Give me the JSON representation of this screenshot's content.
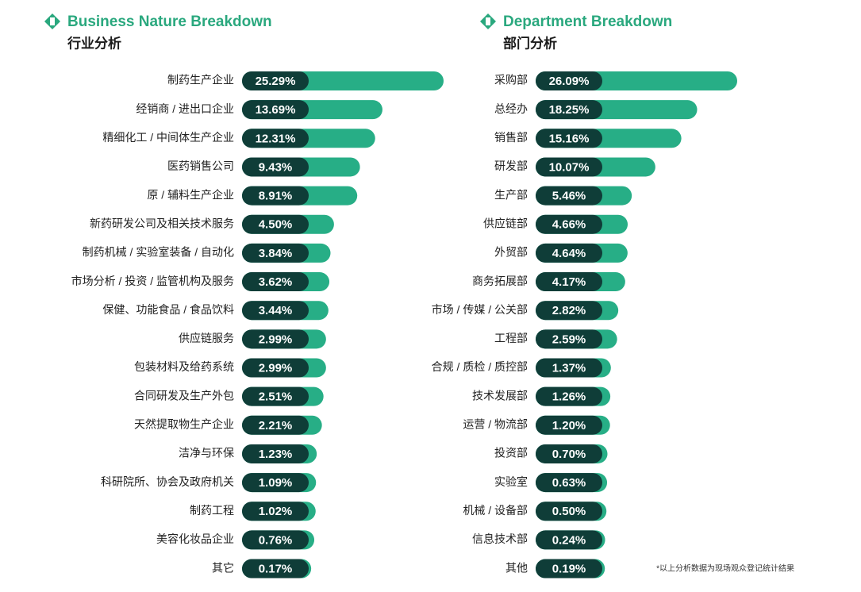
{
  "chart_data": [
    {
      "type": "bar",
      "title": "Business Nature Breakdown",
      "subtitle": "行业分析",
      "color": "#27ae86",
      "categories": [
        "制药生产企业",
        "经销商 / 进出口企业",
        "精细化工 / 中间体生产企业",
        "医药销售公司",
        "原 / 辅料生产企业",
        "新药研发公司及相关技术服务",
        "制药机械 / 实验室装备 / 自动化",
        "市场分析 / 投资 / 监管机构及服务",
        "保健、功能食品 / 食品饮料",
        "供应链服务",
        "包装材料及给药系统",
        "合同研发及生产外包",
        "天然提取物生产企业",
        "洁净与环保",
        "科研院所、协会及政府机关",
        "制药工程",
        "美容化妆品企业",
        "其它"
      ],
      "values": [
        25.29,
        13.69,
        12.31,
        9.43,
        8.91,
        4.5,
        3.84,
        3.62,
        3.44,
        2.99,
        2.99,
        2.51,
        2.21,
        1.23,
        1.09,
        1.02,
        0.76,
        0.17
      ],
      "value_labels": [
        "25.29%",
        "13.69%",
        "12.31%",
        "9.43%",
        "8.91%",
        "4.50%",
        "3.84%",
        "3.62%",
        "3.44%",
        "2.99%",
        "2.99%",
        "2.51%",
        "2.21%",
        "1.23%",
        "1.09%",
        "1.02%",
        "0.76%",
        "0.17%"
      ]
    },
    {
      "type": "bar",
      "title": "Department Breakdown",
      "subtitle": "部门分析",
      "color": "#27ae86",
      "categories": [
        "采购部",
        "总经办",
        "销售部",
        "研发部",
        "生产部",
        "供应链部",
        "外贸部",
        "商务拓展部",
        "市场 / 传媒 / 公关部",
        "工程部",
        "合规 / 质检 / 质控部",
        "技术发展部",
        "运营 / 物流部",
        "投资部",
        "实验室",
        "机械 / 设备部",
        "信息技术部",
        "其他"
      ],
      "values": [
        26.09,
        18.25,
        15.16,
        10.07,
        5.46,
        4.66,
        4.64,
        4.17,
        2.82,
        2.59,
        1.37,
        1.26,
        1.2,
        0.7,
        0.63,
        0.5,
        0.24,
        0.19
      ],
      "value_labels": [
        "26.09%",
        "18.25%",
        "15.16%",
        "10.07%",
        "5.46%",
        "4.66%",
        "4.64%",
        "4.17%",
        "2.82%",
        "2.59%",
        "1.37%",
        "1.26%",
        "1.20%",
        "0.70%",
        "0.63%",
        "0.50%",
        "0.24%",
        "0.19%"
      ],
      "footnote": "*以上分析数据为现场观众登记统计结果"
    }
  ]
}
